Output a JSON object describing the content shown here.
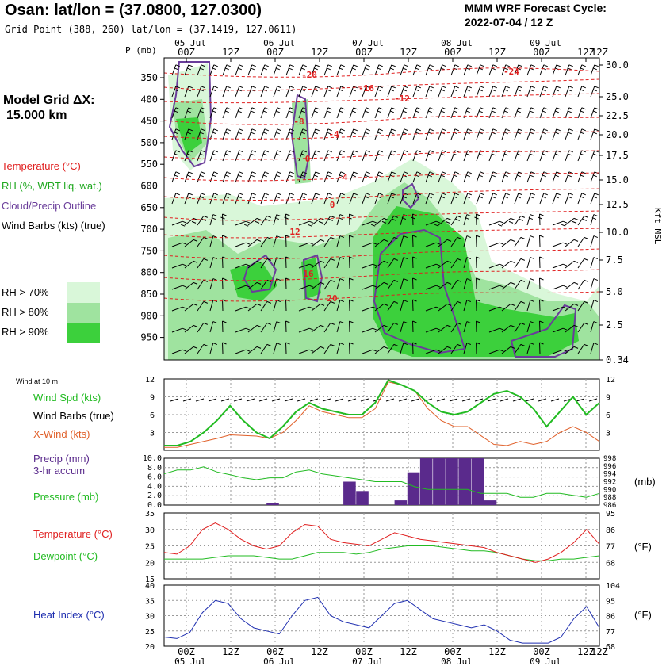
{
  "header": {
    "title": "Osan:  lat/lon = (37.0800, 127.0300)",
    "subtitle": "Grid Point (388, 260) lat/lon = (37.1419, 127.0611)",
    "cycle_label": "MMM WRF Forecast Cycle:",
    "cycle_value": "2022-07-04 / 12  Z"
  },
  "left_panel": {
    "grid_label": "Model Grid ΔX:",
    "grid_value": "15.000 km",
    "temperature_label": "Temperature (°C)",
    "rh_label": "RH (%, WRT liq. wat.)",
    "cloud_label": "Cloud/Precip Outline",
    "barb_label": "Wind Barbs (kts) (true)",
    "rh_legend": [
      {
        "label": "RH > 70%",
        "color": "#d9f7d9"
      },
      {
        "label": "RH > 80%",
        "color": "#9fe39f"
      },
      {
        "label": "RH > 90%",
        "color": "#3cd03c"
      }
    ]
  },
  "time_axis": {
    "top_days": [
      "05 Jul",
      "06 Jul",
      "07 Jul",
      "08 Jul",
      "09 Jul"
    ],
    "hours": [
      "00Z",
      "12Z",
      "00Z",
      "12Z",
      "00Z",
      "12Z",
      "00Z",
      "12Z",
      "00Z",
      "12Z"
    ],
    "bottom_days": [
      "05 Jul",
      "06 Jul",
      "07 Jul",
      "08 Jul",
      "09 Jul"
    ]
  },
  "chart_data": [
    {
      "type": "heatmap",
      "title": "Vertical profile",
      "ylabel": "P (mb)",
      "pressure_levels": [
        350,
        400,
        450,
        500,
        550,
        600,
        650,
        700,
        750,
        800,
        850,
        900,
        950
      ],
      "right_axis_label": "Kft MSL",
      "right_ticks": [
        "30.0",
        "25.0",
        "22.5",
        "20.0",
        "17.5",
        "15.0",
        "12.5",
        "10.0",
        "7.5",
        "5.0",
        "2.5",
        "0.34"
      ],
      "temperature_labels": [
        "-20",
        "-24",
        "-16",
        "-12",
        "-8",
        "-4",
        "0",
        "-4",
        "0",
        "12",
        "16",
        "20"
      ],
      "colors": {
        "temp": "#e02020",
        "rh70": "#d9f7d9",
        "rh80": "#9fe39f",
        "rh90": "#3cd03c",
        "cloud": "#6a3d9a"
      }
    },
    {
      "type": "line",
      "title": "Wind at 10 m",
      "series": [
        {
          "name": "Wind Spd (kts)",
          "color": "#22bb22",
          "values": [
            0.8,
            0.8,
            1.5,
            3,
            5,
            7.5,
            5,
            3,
            2,
            4,
            6.5,
            8,
            7,
            6.5,
            6,
            6,
            8,
            11.8,
            11,
            10,
            8,
            6.5,
            6,
            6.5,
            8,
            9.5,
            10,
            9,
            7,
            4,
            6.5,
            9,
            6,
            8
          ]
        },
        {
          "name": "Wind Barbs (true)",
          "color": "#000000",
          "values": []
        },
        {
          "name": "X-Wind (kts)",
          "color": "#e0602a",
          "values": [
            0.5,
            0.5,
            1,
            1.5,
            2,
            2.6,
            2.5,
            2.4,
            2,
            3,
            5,
            7.5,
            6.5,
            6,
            5.5,
            5.5,
            7,
            11.5,
            11,
            10,
            7,
            5,
            4,
            4,
            2.5,
            1,
            0.8,
            1.5,
            1,
            1.5,
            3,
            4,
            3,
            1.5
          ]
        }
      ],
      "ylim": [
        0,
        12
      ],
      "ticks": [
        "3",
        "6",
        "9",
        "12"
      ]
    },
    {
      "type": "bar",
      "series": [
        {
          "name": "Precip (mm)",
          "label2": "3-hr accum",
          "color": "#5a2a8c",
          "values": [
            0,
            0,
            0,
            0,
            0,
            0,
            0,
            0,
            0.5,
            0,
            0,
            0,
            0,
            0,
            5,
            3,
            0,
            0,
            1,
            7,
            10,
            10,
            10,
            10,
            10,
            1,
            0,
            0,
            0,
            0,
            0,
            0,
            0,
            0
          ]
        },
        {
          "name": "Pressure (mb)",
          "color": "#22bb22",
          "values": [
            994,
            995,
            995,
            995.8,
            994.5,
            993.8,
            993,
            992.5,
            993,
            993,
            994.5,
            995,
            994,
            993.5,
            993,
            992.5,
            992,
            992,
            992,
            990.7,
            990,
            990,
            990,
            990,
            989,
            989,
            989,
            988,
            988,
            989,
            989,
            988.5,
            988,
            989
          ]
        }
      ],
      "ylim": [
        0,
        10
      ],
      "precip_ticks": [
        "0.0",
        "2.0",
        "4.0",
        "6.0",
        "8.0",
        "10.0"
      ],
      "pressure_ticks": [
        "986",
        "988",
        "990",
        "992",
        "994",
        "996",
        "998"
      ],
      "pressure_unit": "(mb)"
    },
    {
      "type": "line",
      "series": [
        {
          "name": "Temperature (°C)",
          "color": "#e02020",
          "values": [
            23,
            22.5,
            25,
            30,
            32,
            30,
            27,
            25,
            24,
            25,
            29,
            31.5,
            31,
            27,
            26,
            25.5,
            25,
            27,
            29,
            28,
            27,
            26.5,
            26,
            25.5,
            25,
            24.5,
            23,
            22,
            21,
            20,
            21,
            23,
            26,
            30,
            25.5
          ]
        },
        {
          "name": "Dewpoint (°C)",
          "color": "#22bb22",
          "values": [
            21,
            21,
            21,
            21,
            21.5,
            22,
            22,
            22,
            21.5,
            21,
            21,
            22,
            23,
            23,
            23,
            22.5,
            23,
            24,
            24.5,
            25,
            25,
            25,
            24.5,
            24,
            23.5,
            23.5,
            23,
            22,
            21,
            20.5,
            20.5,
            21,
            21,
            21.5,
            22
          ]
        }
      ],
      "ylim": [
        15,
        35
      ],
      "c_ticks": [
        "15",
        "20",
        "25",
        "30",
        "35"
      ],
      "f_ticks": [
        "68",
        "77",
        "86",
        "95"
      ],
      "f_unit": "(°F)"
    },
    {
      "type": "line",
      "series": [
        {
          "name": "Heat Index (°C)",
          "color": "#1f2fb0",
          "values": [
            23,
            22.5,
            24.5,
            31,
            35,
            34,
            29,
            26,
            25,
            24,
            30,
            35,
            36,
            30,
            28,
            27,
            26,
            30,
            34,
            35,
            32,
            29,
            28,
            27,
            26,
            27,
            25,
            22,
            21,
            21,
            21,
            23,
            29,
            33,
            26
          ]
        }
      ],
      "ylim": [
        20,
        40
      ],
      "c_ticks": [
        "20",
        "25",
        "30",
        "35",
        "40"
      ],
      "f_ticks": [
        "68",
        "77",
        "86",
        "95",
        "104"
      ],
      "f_unit": "(°F)"
    }
  ],
  "panel_labels": {
    "wind_title": "Wind at 10 m",
    "precip_line1": "Precip (mm)",
    "precip_line2": "3-hr accum"
  }
}
